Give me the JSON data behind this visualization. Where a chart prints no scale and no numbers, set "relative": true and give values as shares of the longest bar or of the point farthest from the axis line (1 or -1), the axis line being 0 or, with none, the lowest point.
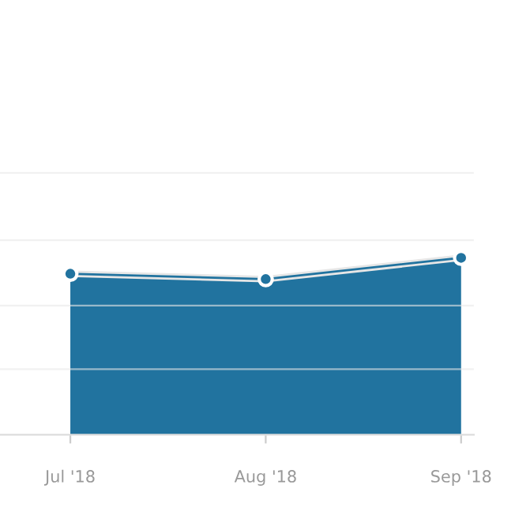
{
  "chart_data": {
    "type": "area",
    "relative": true,
    "categories": [
      "Jul '18",
      "Aug '18",
      "Sep '18"
    ],
    "series": [
      {
        "color": "#21739f",
        "values": [
          0.91,
          0.88,
          1.0
        ]
      }
    ],
    "ref_lines": [
      {
        "axis": "y",
        "value": 0.37,
        "color": "#e8e8e8"
      },
      {
        "axis": "y",
        "value": 0.73,
        "color": "#e8e8e8"
      },
      {
        "axis": "y",
        "value": 1.1,
        "color": "#e8e8e8"
      },
      {
        "axis": "y",
        "value": 1.48,
        "color": "#e8e8e8"
      }
    ],
    "marker": "circle",
    "tick_labels": "x"
  }
}
